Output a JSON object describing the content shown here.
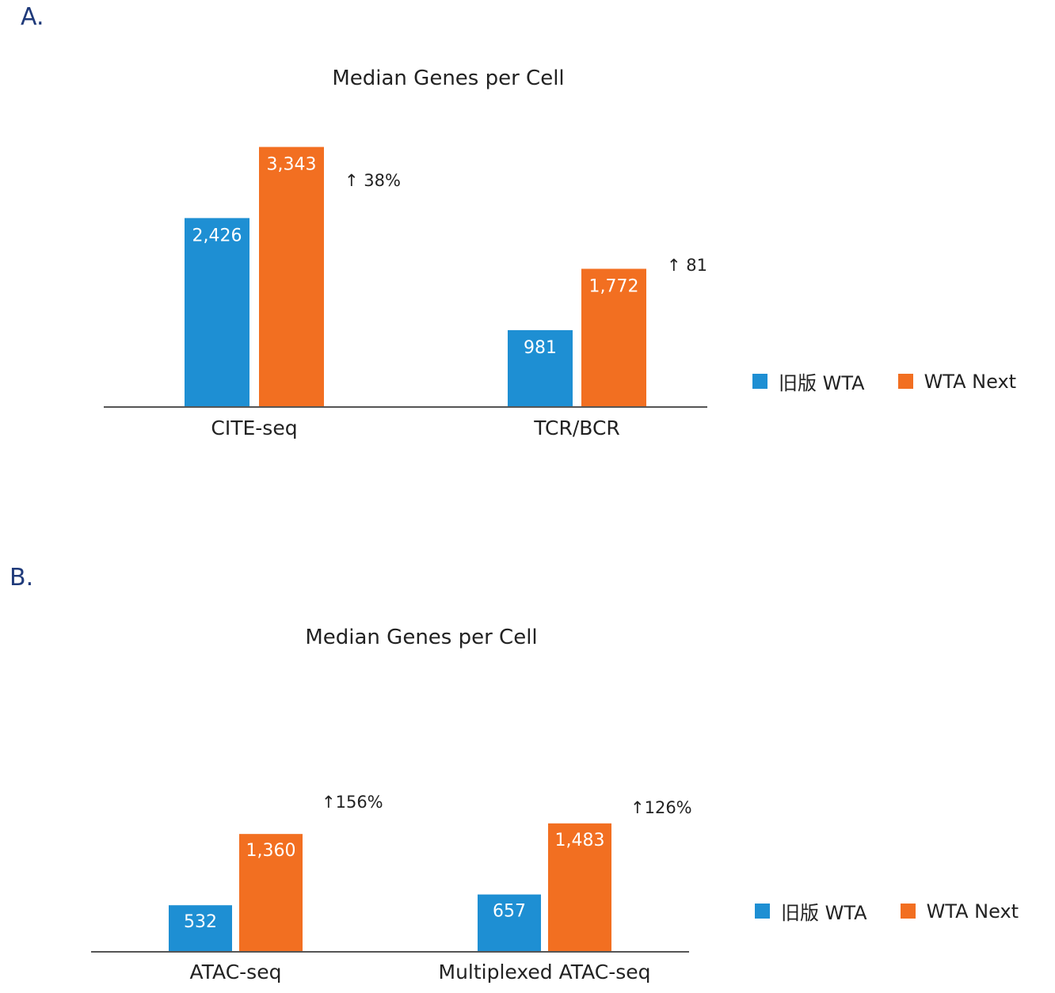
{
  "colors": {
    "old": "#1e8fd3",
    "next": "#f26f21",
    "axis": "#555555",
    "panel_label": "#1f3a7a"
  },
  "chart_data": [
    {
      "type": "bar",
      "panel": "A.",
      "title": "Median Genes per Cell",
      "categories": [
        "CITE-seq",
        "TCR/BCR"
      ],
      "series": [
        {
          "name": "旧版 WTA",
          "values": [
            2426,
            981
          ],
          "labels": [
            "2,426",
            "981"
          ]
        },
        {
          "name": "WTA Next",
          "values": [
            3343,
            1772
          ],
          "labels": [
            "3,343",
            "1,772"
          ]
        }
      ],
      "annotations": [
        "↑ 38%",
        "↑ 81"
      ],
      "ylim": [
        0,
        3400
      ],
      "xlabel": "",
      "ylabel": "",
      "legend": "right"
    },
    {
      "type": "bar",
      "panel": "B.",
      "title": "Median Genes per Cell",
      "categories": [
        "ATAC-seq",
        "Multiplexed ATAC-seq"
      ],
      "series": [
        {
          "name": "旧版 WTA",
          "values": [
            532,
            657
          ],
          "labels": [
            "532",
            "657"
          ]
        },
        {
          "name": "WTA Next",
          "values": [
            1360,
            1483
          ],
          "labels": [
            "1,360",
            "1,483"
          ]
        }
      ],
      "annotations": [
        "↑156%",
        "↑126%"
      ],
      "ylim": [
        0,
        1840
      ],
      "xlabel": "",
      "ylabel": "",
      "legend": "right"
    }
  ]
}
